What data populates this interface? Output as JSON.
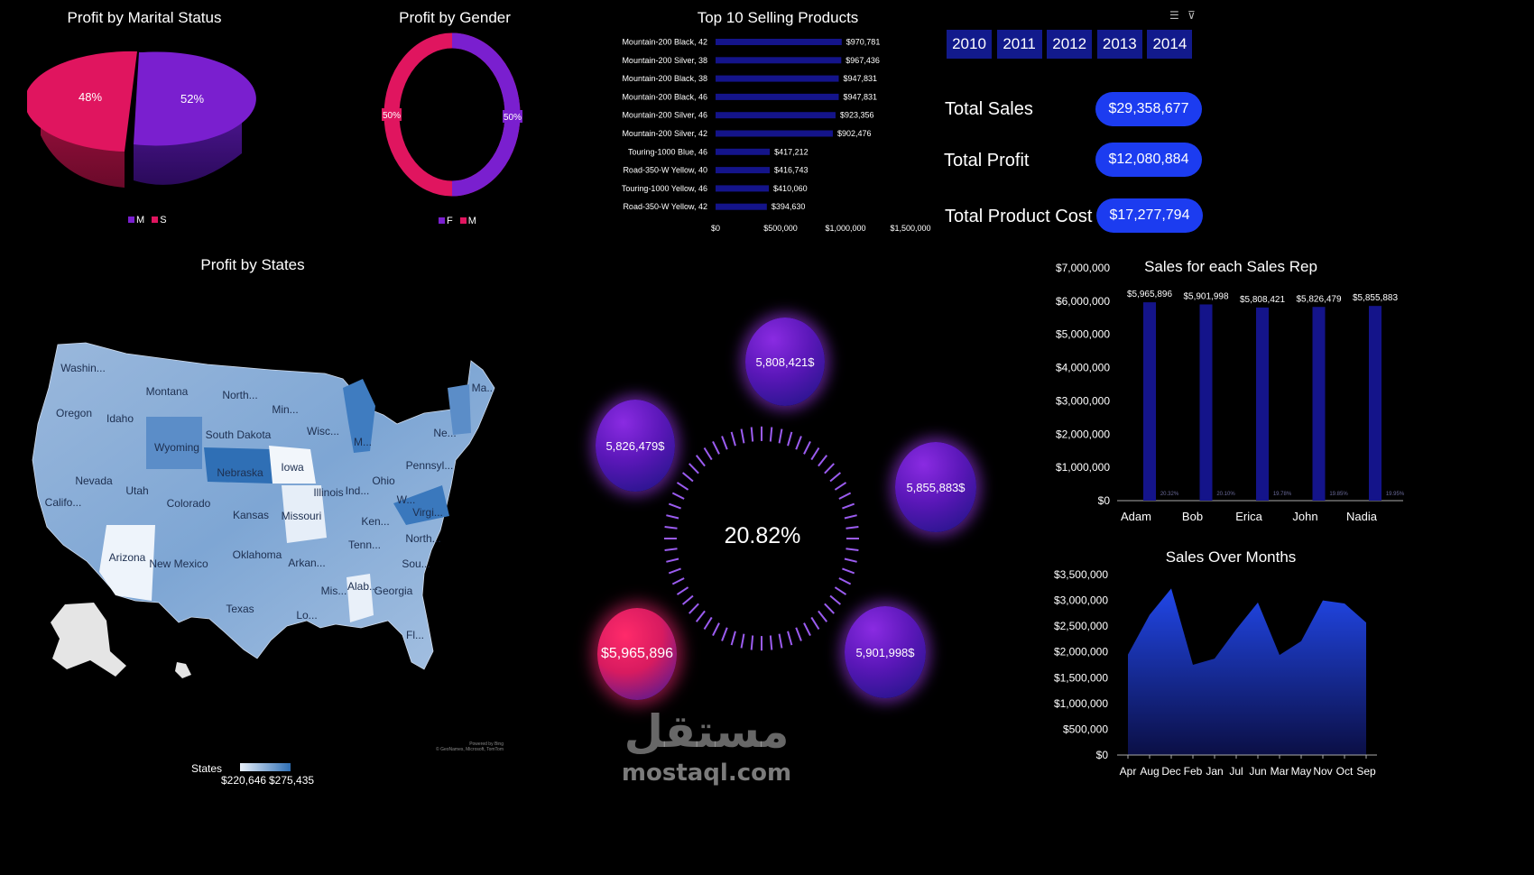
{
  "colors": {
    "purple": "#7a1fcf",
    "pink": "#e0155f",
    "navy": "#14148a",
    "blue": "#1c3cf0",
    "mapLight": "#e8f0fa",
    "mapDark": "#2f6fb5"
  },
  "marital": {
    "title": "Profit by Marital Status",
    "legend": [
      "M",
      "S"
    ]
  },
  "gender": {
    "title": "Profit by Gender",
    "legend": [
      "F",
      "M"
    ]
  },
  "products": {
    "title": "Top 10 Selling Products"
  },
  "years": [
    "2010",
    "2011",
    "2012",
    "2013",
    "2014"
  ],
  "toolbar": {
    "multiselect_icon": "multiselect-icon",
    "clear_filter_icon": "clear-filter-icon"
  },
  "kpis": [
    {
      "label": "Total Sales",
      "value": "$29,358,677"
    },
    {
      "label": "Total Profit",
      "value": "$12,080,884"
    },
    {
      "label": "Total Product Cost",
      "value": "$17,277,794"
    }
  ],
  "map": {
    "title": "Profit by States",
    "legend_title": "States",
    "legend_min": "$220,646",
    "legend_max": "$275,435",
    "attribution1": "Powered by Bing",
    "attribution2": "© GeoNames, Microsoft, TomTom",
    "states": [
      "Washin...",
      "Montana",
      "North...",
      "Min...",
      "Oregon",
      "Idaho",
      "South Dakota",
      "Wisc...",
      "Wyoming",
      "M...",
      "Ma...",
      "Ne...",
      "Nebraska",
      "Iowa",
      "Pennsyl...",
      "Nevada",
      "Utah",
      "Illinois",
      "Ind...",
      "Ohio",
      "Califo...",
      "Colorado",
      "Kansas",
      "Missouri",
      "W...",
      "Virgi...",
      "Ken...",
      "Arizona",
      "New Mexico",
      "Oklahoma",
      "Arkan...",
      "Tenn...",
      "North...",
      "Sou...",
      "Texas",
      "Mis...",
      "Alab...",
      "Georgia",
      "Lo...",
      "Fl..."
    ]
  },
  "gauge": {
    "center": "20.82%",
    "bubbles": [
      "5,808,421$",
      "5,826,479$",
      "5,855,883$",
      "$5,965,896",
      "5,901,998$"
    ]
  },
  "watermark": {
    "arabic": "مستقل",
    "latin": "mostaql.com"
  },
  "chart_data": [
    {
      "type": "pie",
      "title": "Profit by Marital Status",
      "categories": [
        "M",
        "S"
      ],
      "values": [
        52,
        48
      ],
      "labels": [
        "52%",
        "48%"
      ]
    },
    {
      "type": "pie",
      "title": "Profit by Gender",
      "categories": [
        "F",
        "M"
      ],
      "values": [
        50,
        50
      ],
      "labels": [
        "50%",
        "50%"
      ]
    },
    {
      "type": "bar",
      "title": "Top 10 Selling Products",
      "categories": [
        "Mountain-200 Black, 42",
        "Mountain-200 Silver, 38",
        "Mountain-200 Black, 38",
        "Mountain-200 Black, 46",
        "Mountain-200 Silver, 46",
        "Mountain-200 Silver, 42",
        "Touring-1000 Blue, 46",
        "Road-350-W Yellow, 40",
        "Touring-1000 Yellow, 46",
        "Road-350-W Yellow, 42"
      ],
      "values": [
        970781,
        967436,
        947831,
        947831,
        923356,
        902476,
        417212,
        416743,
        410060,
        394630
      ],
      "value_labels": [
        "$970,781",
        "$967,436",
        "$947,831",
        "$947,831",
        "$923,356",
        "$902,476",
        "$417,212",
        "$416,743",
        "$410,060",
        "$394,630"
      ],
      "xlim": [
        0,
        1500000
      ],
      "xticks": [
        "$0",
        "$500,000",
        "$1,000,000",
        "$1,500,000"
      ]
    },
    {
      "type": "bar",
      "title": "Sales for each Sales Rep",
      "categories": [
        "Adam",
        "Bob",
        "Erica",
        "John",
        "Nadia"
      ],
      "values": [
        5965896,
        5901998,
        5808421,
        5826479,
        5855883
      ],
      "value_labels": [
        "$5,965,896",
        "$5,901,998",
        "$5,808,421",
        "$5,826,479",
        "$5,855,883"
      ],
      "pct_labels": [
        "20.32%",
        "20.10%",
        "19.78%",
        "19.85%",
        "19.95%"
      ],
      "ylim": [
        0,
        7000000
      ],
      "yticks": [
        "$0",
        "$1,000,000",
        "$2,000,000",
        "$3,000,000",
        "$4,000,000",
        "$5,000,000",
        "$6,000,000",
        "$7,000,000"
      ]
    },
    {
      "type": "area",
      "title": "Sales Over Months",
      "categories": [
        "Apr",
        "Aug",
        "Dec",
        "Feb",
        "Jan",
        "Jul",
        "Jun",
        "Mar",
        "May",
        "Nov",
        "Oct",
        "Sep"
      ],
      "values": [
        1950000,
        2720000,
        3230000,
        1750000,
        1870000,
        2440000,
        2960000,
        1940000,
        2210000,
        3000000,
        2940000,
        2570000
      ],
      "ylim": [
        0,
        3500000
      ],
      "yticks": [
        "$0",
        "$500,000",
        "$1,000,000",
        "$1,500,000",
        "$2,000,000",
        "$2,500,000",
        "$3,000,000",
        "$3,500,000"
      ]
    }
  ]
}
